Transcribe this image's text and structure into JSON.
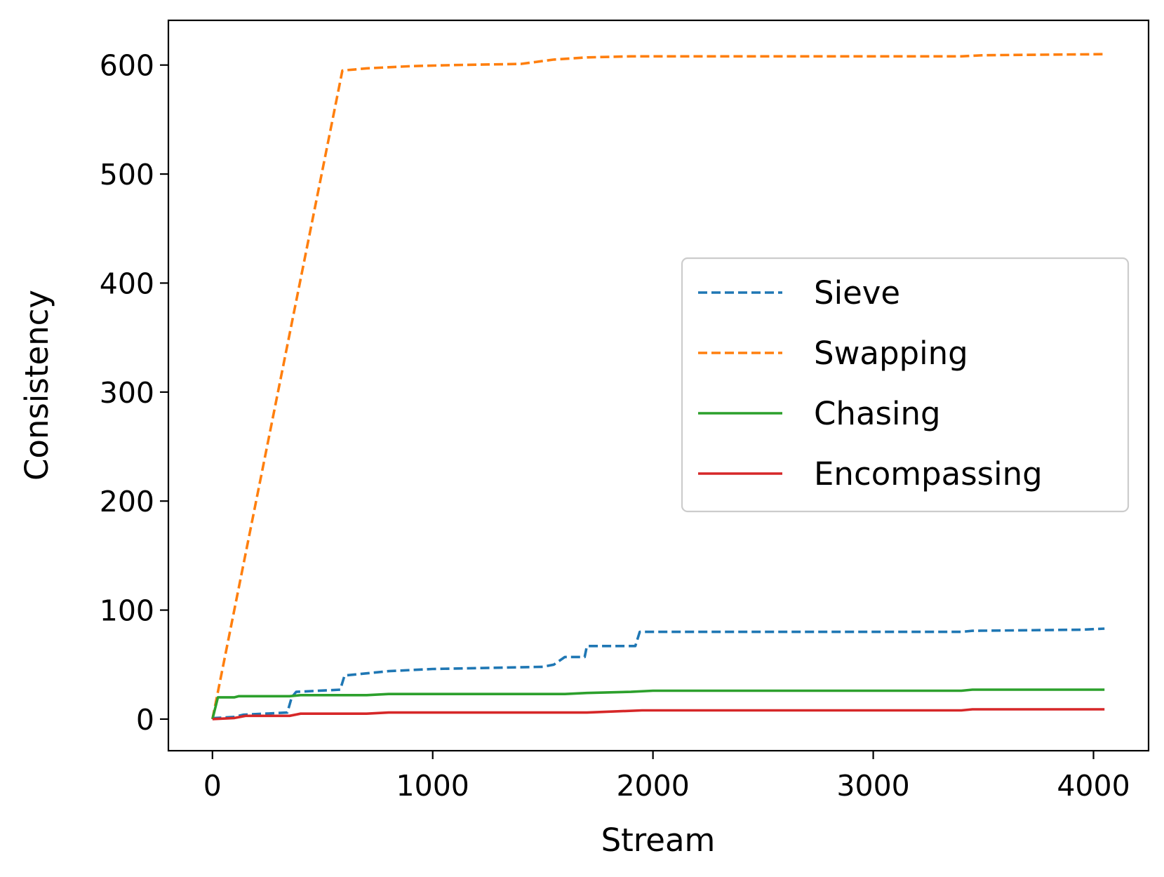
{
  "chart_data": {
    "type": "line",
    "title": "",
    "xlabel": "Stream",
    "ylabel": "Consistency",
    "xlim": [
      -200,
      4250
    ],
    "ylim": [
      -29,
      641
    ],
    "xticks": [
      0,
      1000,
      2000,
      3000,
      4000
    ],
    "yticks": [
      0,
      100,
      200,
      300,
      400,
      500,
      600
    ],
    "grid": false,
    "legend_position": "center-right",
    "series": [
      {
        "name": "Sieve",
        "color": "#1f77b4",
        "dash": "dashed",
        "x": [
          0,
          10,
          100,
          140,
          340,
          360,
          380,
          580,
          600,
          800,
          1000,
          1500,
          1550,
          1600,
          1690,
          1700,
          1920,
          1940,
          3400,
          3450,
          3950,
          4050
        ],
        "y": [
          0,
          1,
          2,
          4,
          6,
          20,
          25,
          27,
          40,
          44,
          46,
          48,
          50,
          57,
          57,
          67,
          67,
          80,
          80,
          81,
          82,
          83
        ]
      },
      {
        "name": "Swapping",
        "color": "#ff7f0e",
        "dash": "dashed",
        "x": [
          0,
          590,
          650,
          700,
          900,
          1100,
          1400,
          1550,
          1700,
          1900,
          3400,
          3500,
          4050
        ],
        "y": [
          0,
          595,
          596,
          597,
          599,
          600,
          601,
          605,
          607,
          608,
          608,
          609,
          610
        ]
      },
      {
        "name": "Chasing",
        "color": "#2ca02c",
        "dash": "solid",
        "x": [
          0,
          25,
          100,
          120,
          350,
          400,
          700,
          800,
          1600,
          1700,
          1900,
          2000,
          3400,
          3450,
          4050
        ],
        "y": [
          0,
          20,
          20,
          21,
          21,
          22,
          22,
          23,
          23,
          24,
          25,
          26,
          26,
          27,
          27
        ],
        "value_note": ""
      },
      {
        "name": "Encompassing",
        "color": "#d62728",
        "dash": "solid",
        "x": [
          0,
          100,
          150,
          350,
          400,
          700,
          800,
          1700,
          1950,
          3400,
          3450,
          4050
        ],
        "y": [
          0,
          1,
          3,
          3,
          5,
          5,
          6,
          6,
          8,
          8,
          9,
          9
        ]
      }
    ]
  }
}
